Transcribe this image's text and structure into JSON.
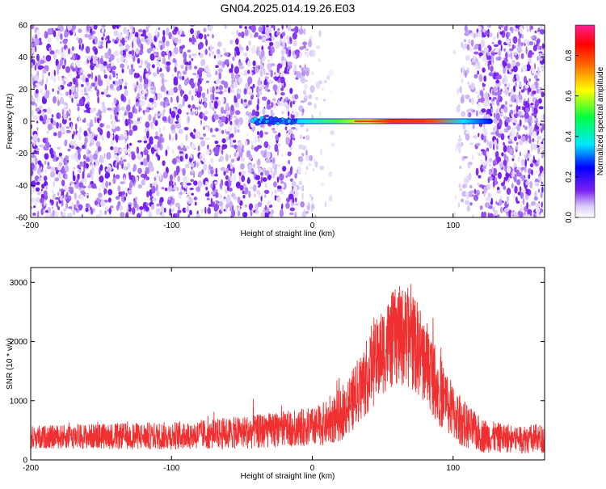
{
  "title": "GN04.2025.014.19.26.E03",
  "colors": {
    "snr_line": "#f03030",
    "axis": "#000000",
    "background": "#ffffff"
  },
  "chart_data": [
    {
      "type": "heatmap",
      "title": "GN04.2025.014.19.26.E03",
      "xlabel": "Height of straight line (km)",
      "ylabel": "Frequency (Hz)",
      "xlim": [
        -200,
        165
      ],
      "ylim": [
        -60,
        60
      ],
      "x_ticks": [
        -200,
        -100,
        0,
        100
      ],
      "y_ticks": [
        -60,
        -40,
        -20,
        0,
        20,
        40,
        60
      ],
      "colorbar": {
        "label": "Normalized spectral amplitude",
        "range": [
          0,
          0.95
        ],
        "ticks": [
          "0.0",
          "0.2",
          "0.4",
          "0.6",
          "0.8"
        ],
        "colormap": "rainbow (white-violet-blue-cyan-green-yellow-red-magenta)"
      },
      "features": {
        "noise_fields": [
          {
            "x_range": [
              -200,
              5
            ],
            "density": "high",
            "amplitude": [
              0.02,
              0.15
            ]
          },
          {
            "x_range": [
              5,
              15
            ],
            "density": "low",
            "amplitude": [
              0.01,
              0.05
            ]
          },
          {
            "x_range": [
              100,
              165
            ],
            "density": "high",
            "amplitude": [
              0.02,
              0.15
            ]
          }
        ],
        "signal_line": {
          "frequency": 0,
          "x_range": [
            -42,
            128
          ],
          "peak_x": [
            30,
            80
          ],
          "peak_amplitude": 0.85
        }
      }
    },
    {
      "type": "area",
      "xlabel": "Height of straight line (km)",
      "ylabel": "SNR (10 * v/v)",
      "xlim": [
        -200,
        165
      ],
      "ylim": [
        0,
        3250
      ],
      "x_ticks": [
        -200,
        -100,
        0,
        100
      ],
      "y_ticks": [
        0,
        1000,
        2000,
        3000
      ],
      "envelope": {
        "x": [
          -200,
          -180,
          -150,
          -120,
          -100,
          -80,
          -60,
          -40,
          -20,
          0,
          10,
          20,
          30,
          40,
          50,
          60,
          70,
          80,
          90,
          100,
          110,
          120,
          130,
          140,
          150,
          165
        ],
        "mean": [
          380,
          390,
          400,
          400,
          410,
          430,
          450,
          480,
          520,
          560,
          620,
          760,
          1050,
          1450,
          1850,
          2100,
          2050,
          1700,
          1200,
          800,
          560,
          420,
          380,
          370,
          360,
          360
        ],
        "spread": [
          200,
          200,
          220,
          230,
          240,
          250,
          270,
          290,
          300,
          330,
          380,
          450,
          550,
          650,
          750,
          850,
          850,
          750,
          620,
          480,
          380,
          300,
          260,
          250,
          250,
          250
        ]
      }
    }
  ]
}
